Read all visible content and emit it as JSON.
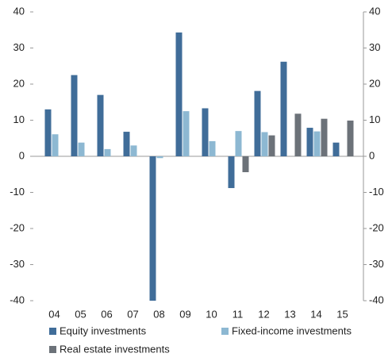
{
  "chart_data": {
    "type": "bar",
    "categories": [
      "04",
      "05",
      "06",
      "07",
      "08",
      "09",
      "10",
      "11",
      "12",
      "13",
      "14",
      "15"
    ],
    "series": [
      {
        "name": "Equity investments",
        "color": "#406d99",
        "values": [
          13,
          22.5,
          17,
          6.8,
          -40,
          34.3,
          13.3,
          -8.8,
          18.1,
          26.2,
          7.9,
          3.8
        ]
      },
      {
        "name": "Fixed-income investments",
        "color": "#8db8d2",
        "values": [
          6.1,
          3.8,
          2.0,
          3.0,
          -0.5,
          12.5,
          4.2,
          7.0,
          6.7,
          null,
          6.9,
          null
        ]
      },
      {
        "name": "Real estate investments",
        "color": "#6c7279",
        "values": [
          null,
          null,
          null,
          null,
          null,
          null,
          null,
          -4.4,
          5.8,
          11.8,
          10.4,
          9.9
        ]
      }
    ],
    "ylim": [
      -40,
      40
    ],
    "yticks": [
      -40,
      -30,
      -20,
      -10,
      0,
      10,
      20,
      30,
      40
    ],
    "y2lim": [
      -40,
      40
    ],
    "y2ticks": [
      -40,
      -30,
      -20,
      -10,
      0,
      10,
      20,
      30,
      40
    ]
  }
}
